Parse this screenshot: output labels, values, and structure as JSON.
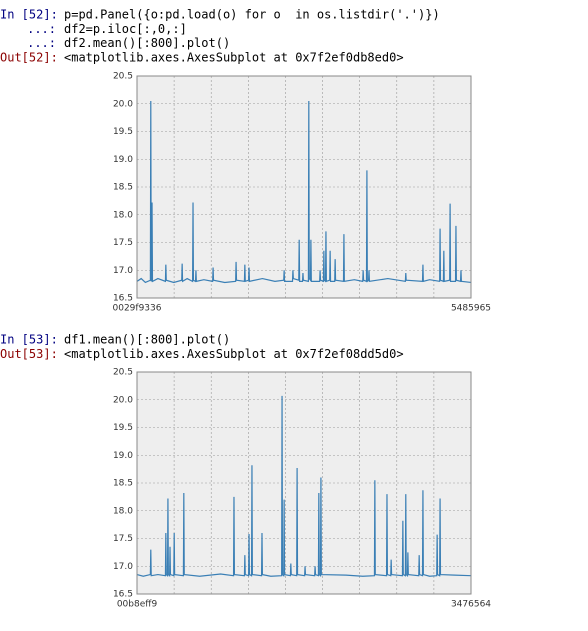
{
  "cells": [
    {
      "in_prompt": "In [52]:",
      "lines": [
        "p=pd.Panel({o:pd.load(o) for o  in os.listdir('.')})",
        "df2=p.iloc[:,0,:]",
        "df2.mean()[:800].plot()"
      ],
      "cont_prompts": [
        "...:",
        "...:"
      ],
      "out_prompt": "Out[52]:",
      "output": "<matplotlib.axes.AxesSubplot at 0x7f2ef0db8ed0>"
    },
    {
      "in_prompt": "In [53]:",
      "lines": [
        "df1.mean()[:800].plot()"
      ],
      "cont_prompts": [],
      "out_prompt": "Out[53]:",
      "output": "<matplotlib.axes.AxesSubplot at 0x7f2ef08dd5d0>"
    }
  ],
  "chart_data": [
    {
      "type": "line",
      "color": "#3a7fb5",
      "grid": true,
      "xlim": [
        0,
        799
      ],
      "xticks": [
        {
          "value": 0,
          "label": "0029f9336"
        },
        {
          "value": 799,
          "label": "5485965"
        }
      ],
      "ylim": [
        16.5,
        20.5
      ],
      "yticks": [
        16.5,
        {
          "value": 17,
          "label": "17.0"
        },
        17.5,
        {
          "value": 18,
          "label": "18.0"
        },
        18.5,
        {
          "value": 19,
          "label": "19.0"
        },
        19.5,
        {
          "value": 20,
          "label": "20.0"
        },
        20.5
      ],
      "x": [
        0,
        10,
        20,
        32,
        33,
        34,
        35,
        36,
        37,
        50,
        68,
        69,
        70,
        88,
        107,
        108,
        109,
        120,
        133,
        134,
        135,
        140,
        141,
        142,
        160,
        181,
        182,
        183,
        210,
        236,
        237,
        238,
        257,
        258,
        259,
        267,
        268,
        269,
        300,
        330,
        351,
        352,
        353,
        372,
        373,
        374,
        387,
        388,
        389,
        396,
        397,
        398,
        410,
        411,
        412,
        415,
        416,
        417,
        437,
        438,
        439,
        446,
        447,
        448,
        451,
        452,
        453,
        461,
        462,
        463,
        473,
        474,
        475,
        494,
        495,
        496,
        520,
        540,
        541,
        542,
        549,
        550,
        551,
        554,
        555,
        556,
        600,
        642,
        643,
        644,
        683,
        684,
        685,
        700,
        724,
        725,
        726,
        733,
        734,
        735,
        748,
        749,
        750,
        762,
        763,
        764,
        774,
        775,
        776,
        799
      ],
      "values": [
        16.8,
        16.85,
        16.78,
        16.82,
        20.05,
        16.8,
        16.85,
        18.22,
        16.8,
        16.85,
        16.8,
        17.1,
        16.82,
        16.78,
        16.82,
        17.12,
        16.8,
        16.85,
        16.8,
        18.22,
        16.82,
        16.8,
        17.0,
        16.8,
        16.83,
        16.8,
        17.05,
        16.82,
        16.78,
        16.8,
        17.15,
        16.82,
        16.8,
        17.1,
        16.8,
        16.82,
        17.05,
        16.8,
        16.85,
        16.8,
        16.82,
        17.0,
        16.8,
        16.8,
        17.0,
        16.85,
        16.82,
        17.55,
        16.8,
        16.8,
        16.95,
        16.82,
        16.8,
        20.05,
        16.85,
        16.82,
        17.55,
        16.8,
        16.8,
        17.0,
        16.82,
        16.8,
        17.35,
        16.82,
        16.8,
        17.7,
        16.8,
        16.82,
        17.35,
        16.8,
        16.8,
        17.2,
        16.82,
        16.8,
        17.65,
        16.8,
        16.83,
        16.8,
        17.0,
        16.82,
        16.8,
        18.8,
        16.8,
        16.82,
        17.0,
        16.8,
        16.85,
        16.8,
        16.95,
        16.82,
        16.8,
        17.1,
        16.8,
        16.83,
        16.8,
        17.75,
        16.82,
        16.8,
        17.35,
        16.8,
        16.82,
        18.2,
        16.8,
        16.8,
        17.8,
        16.82,
        16.8,
        17.0,
        16.8,
        16.78
      ]
    },
    {
      "type": "line",
      "color": "#3a7fb5",
      "grid": true,
      "xlim": [
        0,
        799
      ],
      "xticks": [
        {
          "value": 0,
          "label": "00b8eff9"
        },
        {
          "value": 799,
          "label": "3476564"
        }
      ],
      "ylim": [
        16.5,
        20.5
      ],
      "yticks": [
        16.5,
        {
          "value": 17,
          "label": "17.0"
        },
        17.5,
        {
          "value": 18,
          "label": "18.0"
        },
        18.5,
        {
          "value": 19,
          "label": "19.0"
        },
        19.5,
        {
          "value": 20,
          "label": "20.0"
        },
        20.5
      ],
      "x": [
        0,
        15,
        32,
        33,
        34,
        50,
        68,
        69,
        70,
        73,
        74,
        75,
        78,
        79,
        80,
        88,
        89,
        90,
        111,
        112,
        113,
        150,
        200,
        231,
        232,
        233,
        257,
        258,
        259,
        267,
        268,
        269,
        274,
        275,
        276,
        298,
        299,
        300,
        320,
        346,
        347,
        348,
        351,
        352,
        353,
        367,
        368,
        369,
        382,
        383,
        384,
        401,
        402,
        403,
        425,
        426,
        427,
        434,
        435,
        436,
        439,
        440,
        441,
        500,
        540,
        568,
        569,
        570,
        597,
        598,
        599,
        607,
        608,
        609,
        635,
        636,
        637,
        642,
        643,
        644,
        647,
        648,
        649,
        674,
        675,
        676,
        683,
        684,
        685,
        700,
        717,
        718,
        719,
        724,
        725,
        726,
        760,
        799
      ],
      "values": [
        16.85,
        16.82,
        16.85,
        17.3,
        16.83,
        16.85,
        16.83,
        17.6,
        16.85,
        16.83,
        18.22,
        16.85,
        16.83,
        17.35,
        16.85,
        16.83,
        17.6,
        16.85,
        16.83,
        18.32,
        16.85,
        16.82,
        16.86,
        16.83,
        18.25,
        16.85,
        16.83,
        17.2,
        16.85,
        16.83,
        17.58,
        16.85,
        16.83,
        18.82,
        16.85,
        16.83,
        17.6,
        16.85,
        16.82,
        16.83,
        20.07,
        16.85,
        16.83,
        18.2,
        16.85,
        16.83,
        17.05,
        16.85,
        16.83,
        18.77,
        16.85,
        16.83,
        17.0,
        16.85,
        16.83,
        17.0,
        16.85,
        16.83,
        18.32,
        16.85,
        16.83,
        18.6,
        16.85,
        16.84,
        16.82,
        16.83,
        18.55,
        16.85,
        16.83,
        18.3,
        16.85,
        16.83,
        17.12,
        16.85,
        16.83,
        17.82,
        16.85,
        16.83,
        18.3,
        16.85,
        16.83,
        17.25,
        16.85,
        16.83,
        17.2,
        16.85,
        16.83,
        18.37,
        16.85,
        16.82,
        16.83,
        17.57,
        16.85,
        16.83,
        18.22,
        16.85,
        16.84,
        16.83
      ]
    }
  ]
}
